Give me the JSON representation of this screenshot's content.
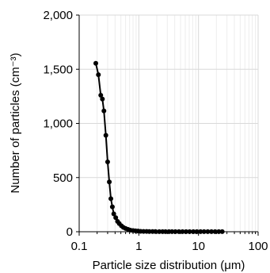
{
  "chart_data": {
    "type": "scatter",
    "xscale": "log",
    "xlim": [
      0.1,
      100
    ],
    "ylim": [
      0,
      2000
    ],
    "x_ticks": [
      0.1,
      1,
      10,
      100
    ],
    "x_tick_labels": [
      "0.1",
      "1",
      "10",
      "100"
    ],
    "y_ticks": [
      0,
      500,
      1000,
      1500,
      2000
    ],
    "y_tick_labels": [
      "0",
      "500",
      "1,000",
      "1,500",
      "2,000"
    ],
    "xlabel": "Particle size distribution (μm)",
    "ylabel": "Number of particles (cm⁻³)",
    "grid": true,
    "series": [
      {
        "color": "#000000",
        "marker": "circle",
        "line": true,
        "x": [
          0.19,
          0.21,
          0.23,
          0.245,
          0.26,
          0.28,
          0.3,
          0.32,
          0.34,
          0.36,
          0.38,
          0.41,
          0.44,
          0.47,
          0.51,
          0.55,
          0.6,
          0.66,
          0.72,
          0.8,
          0.88,
          0.97,
          1.07,
          1.2,
          1.35,
          1.5,
          1.7,
          1.9,
          2.2,
          2.5,
          2.8,
          3.2,
          3.6,
          4.1,
          4.7,
          5.4,
          6.2,
          7.1,
          8.2,
          9.4,
          10.8,
          12.4,
          14.3,
          16.5,
          19.0,
          21.9,
          25.0
        ],
        "y": [
          1555,
          1450,
          1260,
          1225,
          1115,
          890,
          645,
          460,
          305,
          230,
          165,
          130,
          95,
          75,
          55,
          40,
          30,
          22,
          15,
          11,
          8,
          6,
          4,
          3,
          3,
          2,
          2,
          2,
          1,
          1,
          1,
          1,
          1,
          1,
          1,
          1,
          1,
          1,
          1,
          1,
          1,
          1,
          1,
          1,
          1,
          1,
          1
        ]
      }
    ]
  }
}
